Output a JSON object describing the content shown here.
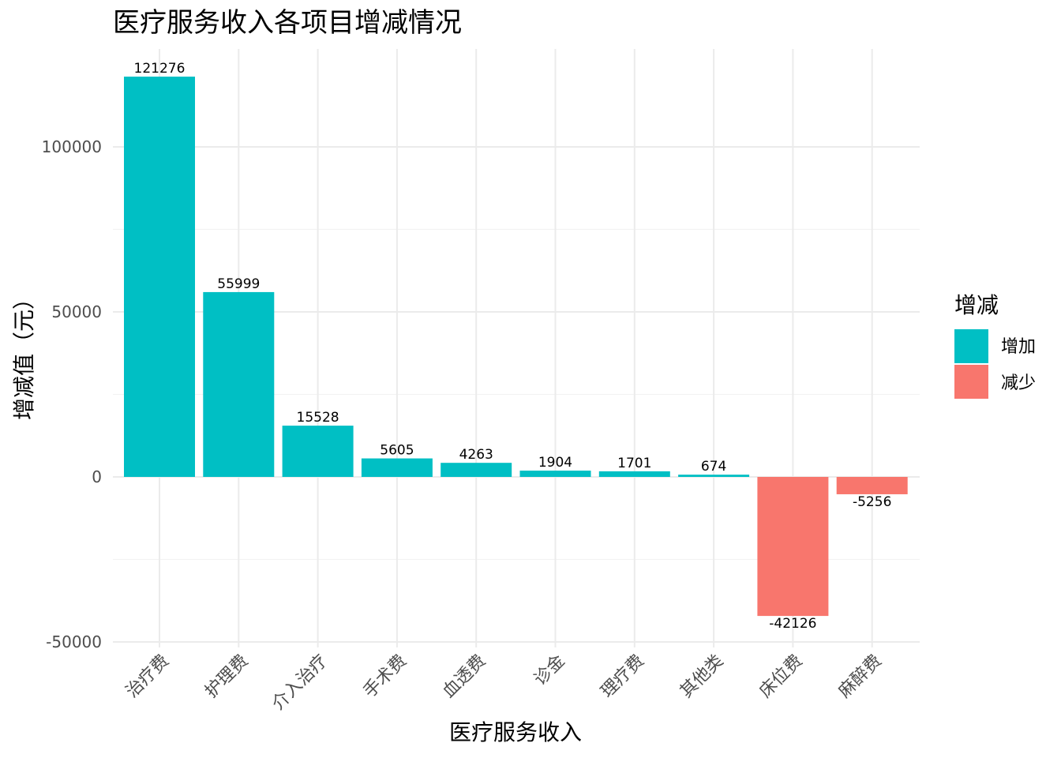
{
  "chart_data": {
    "type": "bar",
    "title": "医疗服务收入各项目增减情况",
    "xlabel": "医疗服务收入",
    "ylabel": "增减值（元）",
    "categories": [
      "治疗费",
      "护理费",
      "介入治疗",
      "手术费",
      "血透费",
      "诊金",
      "理疗费",
      "其他类",
      "床位费",
      "麻醉费"
    ],
    "values": [
      121276,
      55999,
      15528,
      5605,
      4263,
      1904,
      1701,
      674,
      -42126,
      -5256
    ],
    "value_labels": [
      "121276",
      "55999",
      "15528",
      "5605",
      "4263",
      "1904",
      "1701",
      "674",
      "-42126",
      "-5256"
    ],
    "groups": [
      "增加",
      "增加",
      "增加",
      "增加",
      "增加",
      "增加",
      "增加",
      "增加",
      "减少",
      "减少"
    ],
    "ylim": [
      -50000,
      125000
    ],
    "yticks": [
      -50000,
      0,
      50000,
      100000
    ],
    "ytick_labels": [
      "-50000",
      "0",
      "50000",
      "100000"
    ],
    "grid": true,
    "legend": {
      "title": "增减",
      "position": "right",
      "entries": [
        {
          "label": "增加",
          "color": "#00BFC4"
        },
        {
          "label": "减少",
          "color": "#F8766D"
        }
      ]
    }
  }
}
